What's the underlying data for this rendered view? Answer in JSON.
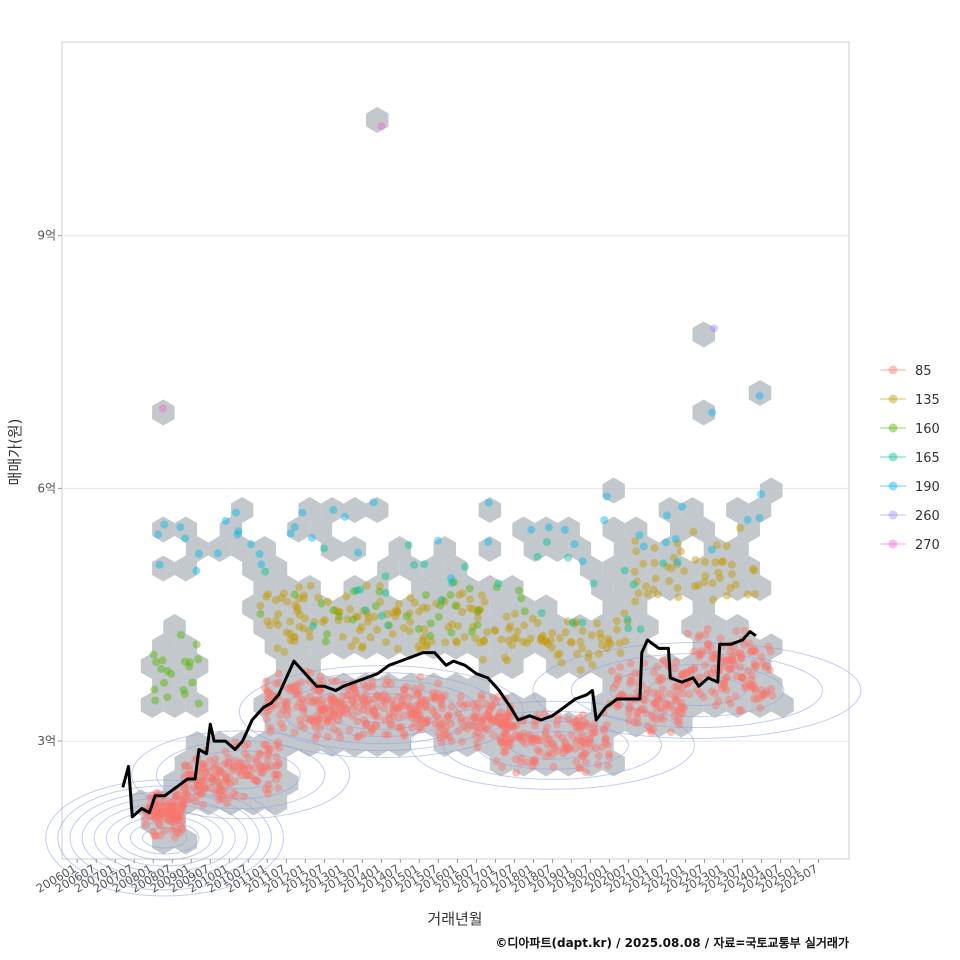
{
  "chart_data": {
    "type": "scatter",
    "xlabel": "거래년월",
    "ylabel": "매매가(원)",
    "caption": "©디아파트(dapt.kr) / 2025.08.08 / 자료=국토교통부 실거래가",
    "x_ticks": [
      "200601",
      "200607",
      "200701",
      "200707",
      "200801",
      "200807",
      "200901",
      "200907",
      "201001",
      "201007",
      "201101",
      "201107",
      "201201",
      "201207",
      "201301",
      "201307",
      "201401",
      "201407",
      "201501",
      "201507",
      "201601",
      "201607",
      "201701",
      "201707",
      "201801",
      "201807",
      "201901",
      "201907",
      "202001",
      "202007",
      "202101",
      "202107",
      "202201",
      "202207",
      "202301",
      "202307",
      "202401",
      "202407",
      "202501",
      "202507"
    ],
    "y_ticks": [
      {
        "value": 3,
        "label": "3억"
      },
      {
        "value": 6,
        "label": "6억"
      },
      {
        "value": 9,
        "label": "9억"
      }
    ],
    "xlim": [
      2005.6,
      2026.3
    ],
    "ylim": [
      1.6,
      11.3
    ],
    "grid": "horizontal",
    "legend_position": "right",
    "legend": [
      {
        "name": "85",
        "color": "#F8766D"
      },
      {
        "name": "135",
        "color": "#C49A00"
      },
      {
        "name": "160",
        "color": "#53B400"
      },
      {
        "name": "165",
        "color": "#00C094"
      },
      {
        "name": "190",
        "color": "#00B6EB"
      },
      {
        "name": "260",
        "color": "#A58AFF"
      },
      {
        "name": "270",
        "color": "#FB61D7"
      }
    ],
    "trend_line": [
      [
        2007.2,
        2.45
      ],
      [
        2007.35,
        2.7
      ],
      [
        2007.45,
        2.1
      ],
      [
        2007.7,
        2.2
      ],
      [
        2007.9,
        2.15
      ],
      [
        2008.05,
        2.35
      ],
      [
        2008.3,
        2.35
      ],
      [
        2008.6,
        2.45
      ],
      [
        2008.9,
        2.55
      ],
      [
        2009.1,
        2.55
      ],
      [
        2009.2,
        2.9
      ],
      [
        2009.4,
        2.85
      ],
      [
        2009.5,
        3.2
      ],
      [
        2009.6,
        3.0
      ],
      [
        2009.9,
        3.0
      ],
      [
        2010.15,
        2.9
      ],
      [
        2010.35,
        3.0
      ],
      [
        2010.6,
        3.25
      ],
      [
        2010.9,
        3.4
      ],
      [
        2011.1,
        3.45
      ],
      [
        2011.3,
        3.55
      ],
      [
        2011.5,
        3.75
      ],
      [
        2011.7,
        3.95
      ],
      [
        2011.9,
        3.85
      ],
      [
        2012.1,
        3.75
      ],
      [
        2012.3,
        3.65
      ],
      [
        2012.5,
        3.65
      ],
      [
        2012.8,
        3.6
      ],
      [
        2013.0,
        3.65
      ],
      [
        2013.3,
        3.7
      ],
      [
        2013.6,
        3.75
      ],
      [
        2013.9,
        3.8
      ],
      [
        2014.2,
        3.9
      ],
      [
        2014.5,
        3.95
      ],
      [
        2014.8,
        4.0
      ],
      [
        2015.1,
        4.05
      ],
      [
        2015.4,
        4.05
      ],
      [
        2015.7,
        3.9
      ],
      [
        2015.9,
        3.95
      ],
      [
        2016.2,
        3.9
      ],
      [
        2016.5,
        3.8
      ],
      [
        2016.8,
        3.75
      ],
      [
        2017.1,
        3.6
      ],
      [
        2017.4,
        3.4
      ],
      [
        2017.6,
        3.25
      ],
      [
        2017.9,
        3.3
      ],
      [
        2018.2,
        3.25
      ],
      [
        2018.5,
        3.3
      ],
      [
        2018.8,
        3.4
      ],
      [
        2019.1,
        3.5
      ],
      [
        2019.4,
        3.55
      ],
      [
        2019.55,
        3.6
      ],
      [
        2019.65,
        3.25
      ],
      [
        2019.9,
        3.4
      ],
      [
        2020.2,
        3.5
      ],
      [
        2020.5,
        3.5
      ],
      [
        2020.8,
        3.5
      ],
      [
        2020.85,
        4.05
      ],
      [
        2021.0,
        4.2
      ],
      [
        2021.3,
        4.1
      ],
      [
        2021.55,
        4.1
      ],
      [
        2021.6,
        3.75
      ],
      [
        2021.9,
        3.7
      ],
      [
        2022.2,
        3.75
      ],
      [
        2022.35,
        3.65
      ],
      [
        2022.6,
        3.75
      ],
      [
        2022.85,
        3.7
      ],
      [
        2022.9,
        4.15
      ],
      [
        2023.2,
        4.15
      ],
      [
        2023.5,
        4.2
      ],
      [
        2023.7,
        4.3
      ],
      [
        2023.85,
        4.25
      ]
    ],
    "point_clusters": [
      {
        "series": "85",
        "x": [
          2007.8,
          2008.8
        ],
        "y": [
          1.8,
          2.5
        ],
        "n": 110
      },
      {
        "series": "85",
        "x": [
          2008.8,
          2010.0
        ],
        "y": [
          2.2,
          2.9
        ],
        "n": 90
      },
      {
        "series": "85",
        "x": [
          2010.0,
          2011.4
        ],
        "y": [
          2.3,
          3.1
        ],
        "n": 70
      },
      {
        "series": "85",
        "x": [
          2010.9,
          2012.5
        ],
        "y": [
          3.0,
          3.9
        ],
        "n": 80
      },
      {
        "series": "85",
        "x": [
          2012.3,
          2015.6
        ],
        "y": [
          3.0,
          3.8
        ],
        "n": 210
      },
      {
        "series": "85",
        "x": [
          2015.5,
          2017.5
        ],
        "y": [
          2.9,
          3.6
        ],
        "n": 100
      },
      {
        "series": "85",
        "x": [
          2017.0,
          2020.0
        ],
        "y": [
          2.6,
          3.4
        ],
        "n": 150
      },
      {
        "series": "85",
        "x": [
          2020.0,
          2022.0
        ],
        "y": [
          3.0,
          4.0
        ],
        "n": 110
      },
      {
        "series": "85",
        "x": [
          2022.0,
          2024.3
        ],
        "y": [
          3.3,
          4.4
        ],
        "n": 130
      },
      {
        "series": "135",
        "x": [
          2010.8,
          2016.8
        ],
        "y": [
          4.0,
          4.9
        ],
        "n": 120
      },
      {
        "series": "135",
        "x": [
          2016.5,
          2020.5
        ],
        "y": [
          3.8,
          4.6
        ],
        "n": 70
      },
      {
        "series": "135",
        "x": [
          2020.5,
          2024.0
        ],
        "y": [
          4.5,
          5.6
        ],
        "n": 50
      },
      {
        "series": "160",
        "x": [
          2008.0,
          2009.2
        ],
        "y": [
          3.4,
          4.3
        ],
        "n": 20
      },
      {
        "series": "160",
        "x": [
          2010.8,
          2018.0
        ],
        "y": [
          4.1,
          5.0
        ],
        "n": 30
      },
      {
        "series": "165",
        "x": [
          2010.8,
          2021.5
        ],
        "y": [
          4.2,
          5.5
        ],
        "n": 30
      },
      {
        "series": "190",
        "x": [
          2008.0,
          2024.0
        ],
        "y": [
          4.8,
          6.1
        ],
        "n": 45
      }
    ],
    "point_labels_outliers": [
      {
        "series": "270",
        "x": 2014.0,
        "y": 10.3
      },
      {
        "series": "270",
        "x": 2008.25,
        "y": 6.95
      },
      {
        "series": "260",
        "x": 2022.75,
        "y": 7.9
      },
      {
        "series": "190",
        "x": 2022.7,
        "y": 6.9
      },
      {
        "series": "190",
        "x": 2023.95,
        "y": 7.1
      }
    ]
  }
}
